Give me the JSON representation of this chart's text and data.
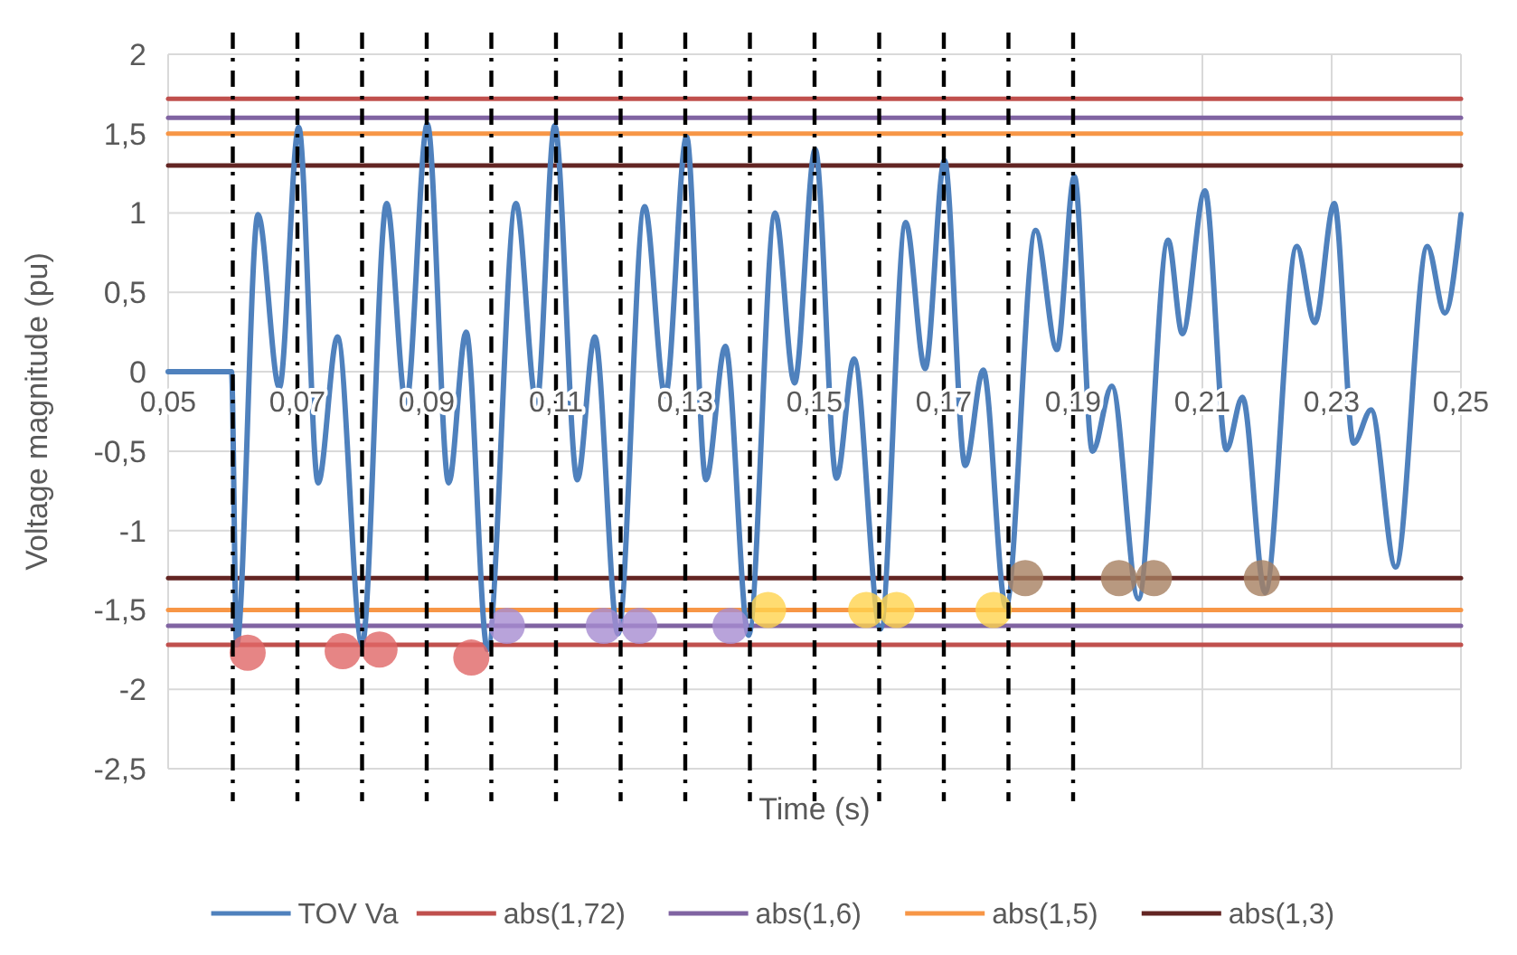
{
  "chart_data": {
    "type": "line",
    "xlabel": "Time (s)",
    "ylabel": "Voltage magnitude (pu)",
    "xlim": [
      0.05,
      0.25
    ],
    "ylim": [
      -2.5,
      2
    ],
    "xticks": [
      {
        "value": 0.05,
        "label": "0,05"
      },
      {
        "value": 0.07,
        "label": "0,07"
      },
      {
        "value": 0.09,
        "label": "0,09"
      },
      {
        "value": 0.11,
        "label": "0,11"
      },
      {
        "value": 0.13,
        "label": "0,13"
      },
      {
        "value": 0.15,
        "label": "0,15"
      },
      {
        "value": 0.17,
        "label": "0,17"
      },
      {
        "value": 0.19,
        "label": "0,19"
      },
      {
        "value": 0.21,
        "label": "0,21"
      },
      {
        "value": 0.23,
        "label": "0,23"
      },
      {
        "value": 0.25,
        "label": "0,25"
      }
    ],
    "yticks": [
      2,
      {
        "value": 1.5,
        "label": "1,5"
      },
      1,
      {
        "value": 0.5,
        "label": "0,5"
      },
      0,
      {
        "value": -0.5,
        "label": "-0,5"
      },
      -1,
      {
        "value": -1.5,
        "label": "-1,5"
      },
      -2,
      {
        "value": -2.5,
        "label": "-2,5"
      }
    ],
    "grid": true,
    "legend": "bottom",
    "line_style": "solid",
    "series": [
      {
        "name": "abs(1,72)",
        "color": "#c0504d",
        "x": [
          0.05,
          0.25
        ],
        "values": [
          1.72,
          1.72
        ]
      },
      {
        "color": "#c0504d",
        "x": [
          0.05,
          0.25
        ],
        "values": [
          -1.72,
          -1.72
        ]
      },
      {
        "name": "abs(1,6)",
        "color": "#8064a2",
        "x": [
          0.05,
          0.25
        ],
        "values": [
          1.6,
          1.6
        ]
      },
      {
        "color": "#8064a2",
        "x": [
          0.05,
          0.25
        ],
        "values": [
          -1.6,
          -1.6
        ]
      },
      {
        "name": "abs(1,5)",
        "color": "#f79646",
        "x": [
          0.05,
          0.25
        ],
        "values": [
          1.5,
          1.5
        ]
      },
      {
        "color": "#f79646",
        "x": [
          0.05,
          0.25
        ],
        "values": [
          -1.5,
          -1.5
        ]
      },
      {
        "name": "abs(1,3)",
        "color": "#632523",
        "x": [
          0.05,
          0.25
        ],
        "values": [
          1.3,
          1.3
        ]
      },
      {
        "color": "#632523",
        "x": [
          0.05,
          0.25
        ],
        "values": [
          -1.3,
          -1.3
        ]
      },
      {
        "name": "TOV Va",
        "color": "#4f81bd",
        "x": [
          0.05,
          0.0598,
          0.0606,
          0.0639,
          0.0672,
          0.0702,
          0.0732,
          0.0762,
          0.08,
          0.0838,
          0.0868,
          0.0901,
          0.0934,
          0.0961,
          0.0994,
          0.1038,
          0.107,
          0.1098,
          0.1133,
          0.116,
          0.1196,
          0.1237,
          0.1269,
          0.1302,
          0.1332,
          0.1362,
          0.1398,
          0.1439,
          0.1469,
          0.1501,
          0.1534,
          0.1561,
          0.1602,
          0.1641,
          0.1671,
          0.1701,
          0.1733,
          0.1761,
          0.1796,
          0.1842,
          0.1875,
          0.1902,
          0.193,
          0.196,
          0.2001,
          0.2047,
          0.2069,
          0.2104,
          0.2137,
          0.2162,
          0.2197,
          0.2246,
          0.2274,
          0.2304,
          0.2334,
          0.2361,
          0.2399,
          0.2448,
          0.2475,
          0.25
        ],
        "values": [
          0,
          0,
          -1.72,
          0.99,
          -0.1,
          1.54,
          -0.7,
          0.22,
          -1.72,
          1.06,
          -0.2,
          1.56,
          -0.7,
          0.25,
          -1.75,
          1.06,
          -0.2,
          1.55,
          -0.68,
          0.22,
          -1.65,
          1.04,
          -0.15,
          1.48,
          -0.68,
          0.16,
          -1.66,
          1.0,
          -0.07,
          1.4,
          -0.67,
          0.08,
          -1.62,
          0.94,
          0.02,
          1.33,
          -0.59,
          0.01,
          -1.48,
          0.89,
          0.14,
          1.23,
          -0.5,
          -0.09,
          -1.43,
          0.83,
          0.24,
          1.14,
          -0.49,
          -0.16,
          -1.39,
          0.79,
          0.31,
          1.06,
          -0.45,
          -0.24,
          -1.23,
          0.79,
          0.37,
          0.99
        ]
      },
      {
        "type": "scatter",
        "marker": "circle",
        "color": "#e06666",
        "x": [
          0.0623,
          0.077,
          0.0827,
          0.0969
        ],
        "values": [
          -1.77,
          -1.76,
          -1.75,
          -1.8
        ]
      },
      {
        "type": "scatter",
        "marker": "circle",
        "color": "#a68cd1",
        "x": [
          0.1024,
          0.1174,
          0.1229,
          0.137
        ],
        "values": [
          -1.6,
          -1.6,
          -1.6,
          -1.6
        ]
      },
      {
        "type": "scatter",
        "marker": "circle",
        "color": "#ffd34d",
        "x": [
          0.1428,
          0.158,
          0.1627,
          0.1777
        ],
        "values": [
          -1.5,
          -1.5,
          -1.5,
          -1.5
        ]
      },
      {
        "type": "scatter",
        "marker": "circle",
        "color": "#a68060",
        "x": [
          0.1826,
          0.1971,
          0.2025,
          0.2192
        ],
        "values": [
          -1.3,
          -1.3,
          -1.3,
          -1.3
        ]
      }
    ],
    "ref_lines": [
      {
        "axis": "x",
        "value": 0.06,
        "color": "#000000",
        "line_style": "dashed"
      },
      {
        "axis": "x",
        "value": 0.07,
        "color": "#000000",
        "line_style": "dashed"
      },
      {
        "axis": "x",
        "value": 0.08,
        "color": "#000000",
        "line_style": "dashed"
      },
      {
        "axis": "x",
        "value": 0.09,
        "color": "#000000",
        "line_style": "dashed"
      },
      {
        "axis": "x",
        "value": 0.1,
        "color": "#000000",
        "line_style": "dashed"
      },
      {
        "axis": "x",
        "value": 0.11,
        "color": "#000000",
        "line_style": "dashed"
      },
      {
        "axis": "x",
        "value": 0.12,
        "color": "#000000",
        "line_style": "dashed"
      },
      {
        "axis": "x",
        "value": 0.13,
        "color": "#000000",
        "line_style": "dashed"
      },
      {
        "axis": "x",
        "value": 0.14,
        "color": "#000000",
        "line_style": "dashed"
      },
      {
        "axis": "x",
        "value": 0.15,
        "color": "#000000",
        "line_style": "dashed"
      },
      {
        "axis": "x",
        "value": 0.16,
        "color": "#000000",
        "line_style": "dashed"
      },
      {
        "axis": "x",
        "value": 0.17,
        "color": "#000000",
        "line_style": "dashed"
      },
      {
        "axis": "x",
        "value": 0.18,
        "color": "#000000",
        "line_style": "dashed"
      },
      {
        "axis": "x",
        "value": 0.19,
        "color": "#000000",
        "line_style": "dashed"
      }
    ]
  }
}
